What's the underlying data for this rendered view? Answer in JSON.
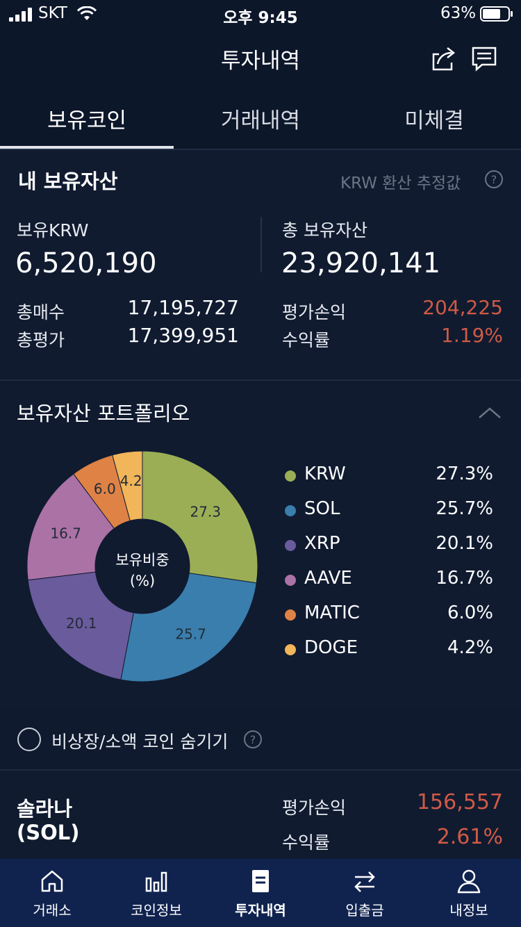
{
  "status_bar": {
    "carrier": "SKT",
    "time": "오후 9:45",
    "battery": "63%"
  },
  "header": {
    "title": "투자내역"
  },
  "tabs": [
    {
      "label": "보유코인",
      "active": true
    },
    {
      "label": "거래내역",
      "active": false
    },
    {
      "label": "미체결",
      "active": false
    }
  ],
  "assets": {
    "title": "내 보유자산",
    "note": "KRW 환산 추정값",
    "krw_label": "보유KRW",
    "krw_value": "6,520,190",
    "total_label": "총 보유자산",
    "total_value": "23,920,141",
    "buy_label": "총매수",
    "buy_value": "17,195,727",
    "eval_label": "총평가",
    "eval_value": "17,399,951",
    "pnl_label": "평가손익",
    "pnl_value": "204,225",
    "rate_label": "수익률",
    "rate_value": "1.19%"
  },
  "portfolio": {
    "title": "보유자산 포트폴리오",
    "center_line1": "보유비중",
    "center_line2": "(%)"
  },
  "chart_data": {
    "type": "pie",
    "categories": [
      "KRW",
      "SOL",
      "XRP",
      "AAVE",
      "MATIC",
      "DOGE"
    ],
    "values": [
      27.3,
      25.7,
      20.1,
      16.7,
      6.0,
      4.2
    ],
    "colors": [
      "#9bae55",
      "#3a7ead",
      "#6a5b9c",
      "#ab72a6",
      "#df8245",
      "#f1b55a"
    ],
    "labels": [
      "27.3",
      "25.7",
      "20.1",
      "16.7",
      "6.0",
      "4.2"
    ],
    "legend_pct": [
      "27.3%",
      "25.7%",
      "20.1%",
      "16.7%",
      "6.0%",
      "4.2%"
    ]
  },
  "hide_toggle": {
    "label": "비상장/소액 코인 숨기기"
  },
  "coin": {
    "name_line1": "솔라나",
    "name_line2": "(SOL)",
    "pnl_label": "평가손익",
    "pnl_value": "156,557",
    "rate_label": "수익률",
    "rate_value": "2.61%"
  },
  "bottom_nav": [
    {
      "label": "거래소",
      "icon": "home-icon",
      "active": false
    },
    {
      "label": "코인정보",
      "icon": "bar-chart-icon",
      "active": false
    },
    {
      "label": "투자내역",
      "icon": "document-icon",
      "active": true
    },
    {
      "label": "입출금",
      "icon": "transfer-icon",
      "active": false
    },
    {
      "label": "내정보",
      "icon": "person-icon",
      "active": false
    }
  ]
}
